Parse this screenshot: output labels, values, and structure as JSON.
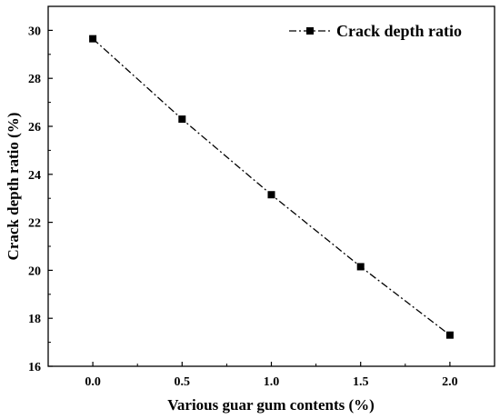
{
  "chart_data": {
    "type": "line",
    "title": "",
    "xlabel": "Various guar gum contents (%)",
    "ylabel": "Crack depth ratio (%)",
    "xlim": [
      -0.25,
      2.25
    ],
    "ylim": [
      16,
      31
    ],
    "xticks": [
      "0.0",
      "0.5",
      "1.0",
      "1.5",
      "2.0"
    ],
    "xtick_values": [
      0,
      0.5,
      1.0,
      1.5,
      2.0
    ],
    "yticks": [
      "16",
      "18",
      "20",
      "22",
      "24",
      "26",
      "28",
      "30"
    ],
    "ytick_values": [
      16,
      18,
      20,
      22,
      24,
      26,
      28,
      30
    ],
    "grid": false,
    "legend_position": "top-right",
    "series": [
      {
        "name": "Crack depth ratio",
        "line_style": "dash-dot",
        "marker": "square",
        "color": "#000000",
        "x": [
          0,
          0.5,
          1.0,
          1.5,
          2.0
        ],
        "y": [
          29.65,
          26.3,
          23.15,
          20.15,
          17.3
        ]
      }
    ]
  }
}
